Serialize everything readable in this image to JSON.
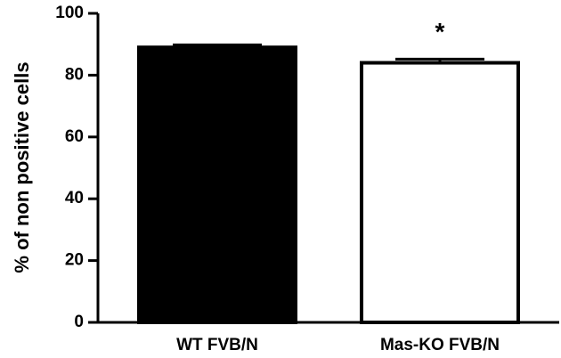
{
  "chart_data": {
    "type": "bar",
    "categories": [
      "WT FVB/N",
      "Mas-KO FVB/N"
    ],
    "values": [
      89,
      84
    ],
    "errors": [
      0.8,
      1.2
    ],
    "bar_colors": [
      "#000000",
      "#ffffff"
    ],
    "bar_edge_color": "#000000",
    "title": "",
    "xlabel": "",
    "ylabel": "% of non positive cells",
    "ylim": [
      0,
      100
    ],
    "yticks": [
      "0",
      "20",
      "40",
      "60",
      "80",
      "100"
    ],
    "grid": false,
    "legend": "none",
    "annotations": [
      {
        "category_index": 1,
        "text": "*"
      }
    ]
  }
}
